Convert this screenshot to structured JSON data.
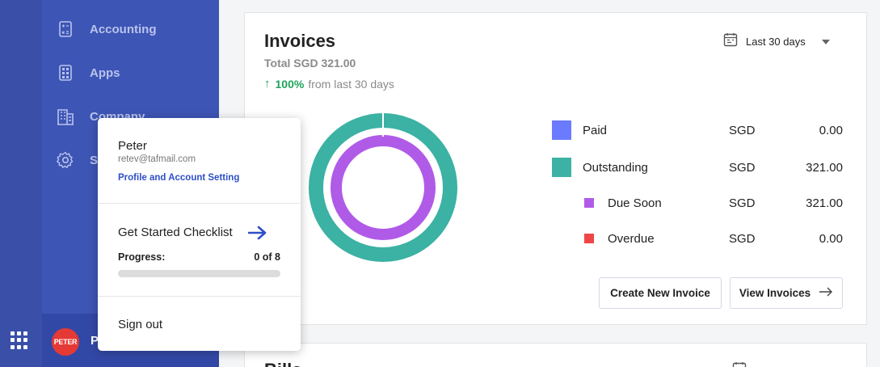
{
  "sidebar": {
    "items": [
      {
        "label": "Accounting",
        "icon": "calculator-icon"
      },
      {
        "label": "Apps",
        "icon": "grid-apps-icon"
      },
      {
        "label": "Company",
        "icon": "building-icon"
      },
      {
        "label": "Settings",
        "icon": "gear-icon"
      }
    ],
    "user": {
      "avatar_text": "PETER",
      "name": "Peter"
    }
  },
  "profile_menu": {
    "name": "Peter",
    "email": "retev@tafmail.com",
    "profile_link": "Profile and Account Setting",
    "checklist_label": "Get Started Checklist",
    "progress_label": "Progress:",
    "progress_text": "0 of 8",
    "progress_fraction": 0,
    "sign_out": "Sign out"
  },
  "invoices": {
    "title": "Invoices",
    "total": "Total SGD 321.00",
    "growth_pct": "100%",
    "growth_text": "from last 30 days",
    "period": "Last 30 days",
    "legend": [
      {
        "label": "Paid",
        "currency": "SGD",
        "amount": "0.00",
        "color": "#6a7bff",
        "sub": false
      },
      {
        "label": "Outstanding",
        "currency": "SGD",
        "amount": "321.00",
        "color": "#3bb2a3",
        "sub": false
      },
      {
        "label": "Due Soon",
        "currency": "SGD",
        "amount": "321.00",
        "color": "#b05be8",
        "sub": true
      },
      {
        "label": "Overdue",
        "currency": "SGD",
        "amount": "0.00",
        "color": "#ef4646",
        "sub": true
      }
    ],
    "buttons": {
      "create": "Create New Invoice",
      "view": "View Invoices"
    }
  },
  "bills": {
    "title": "Bills"
  },
  "colors": {
    "sidebar": "#3d55b5",
    "accent": "#2f4fc8",
    "growth": "#1fa35c"
  }
}
